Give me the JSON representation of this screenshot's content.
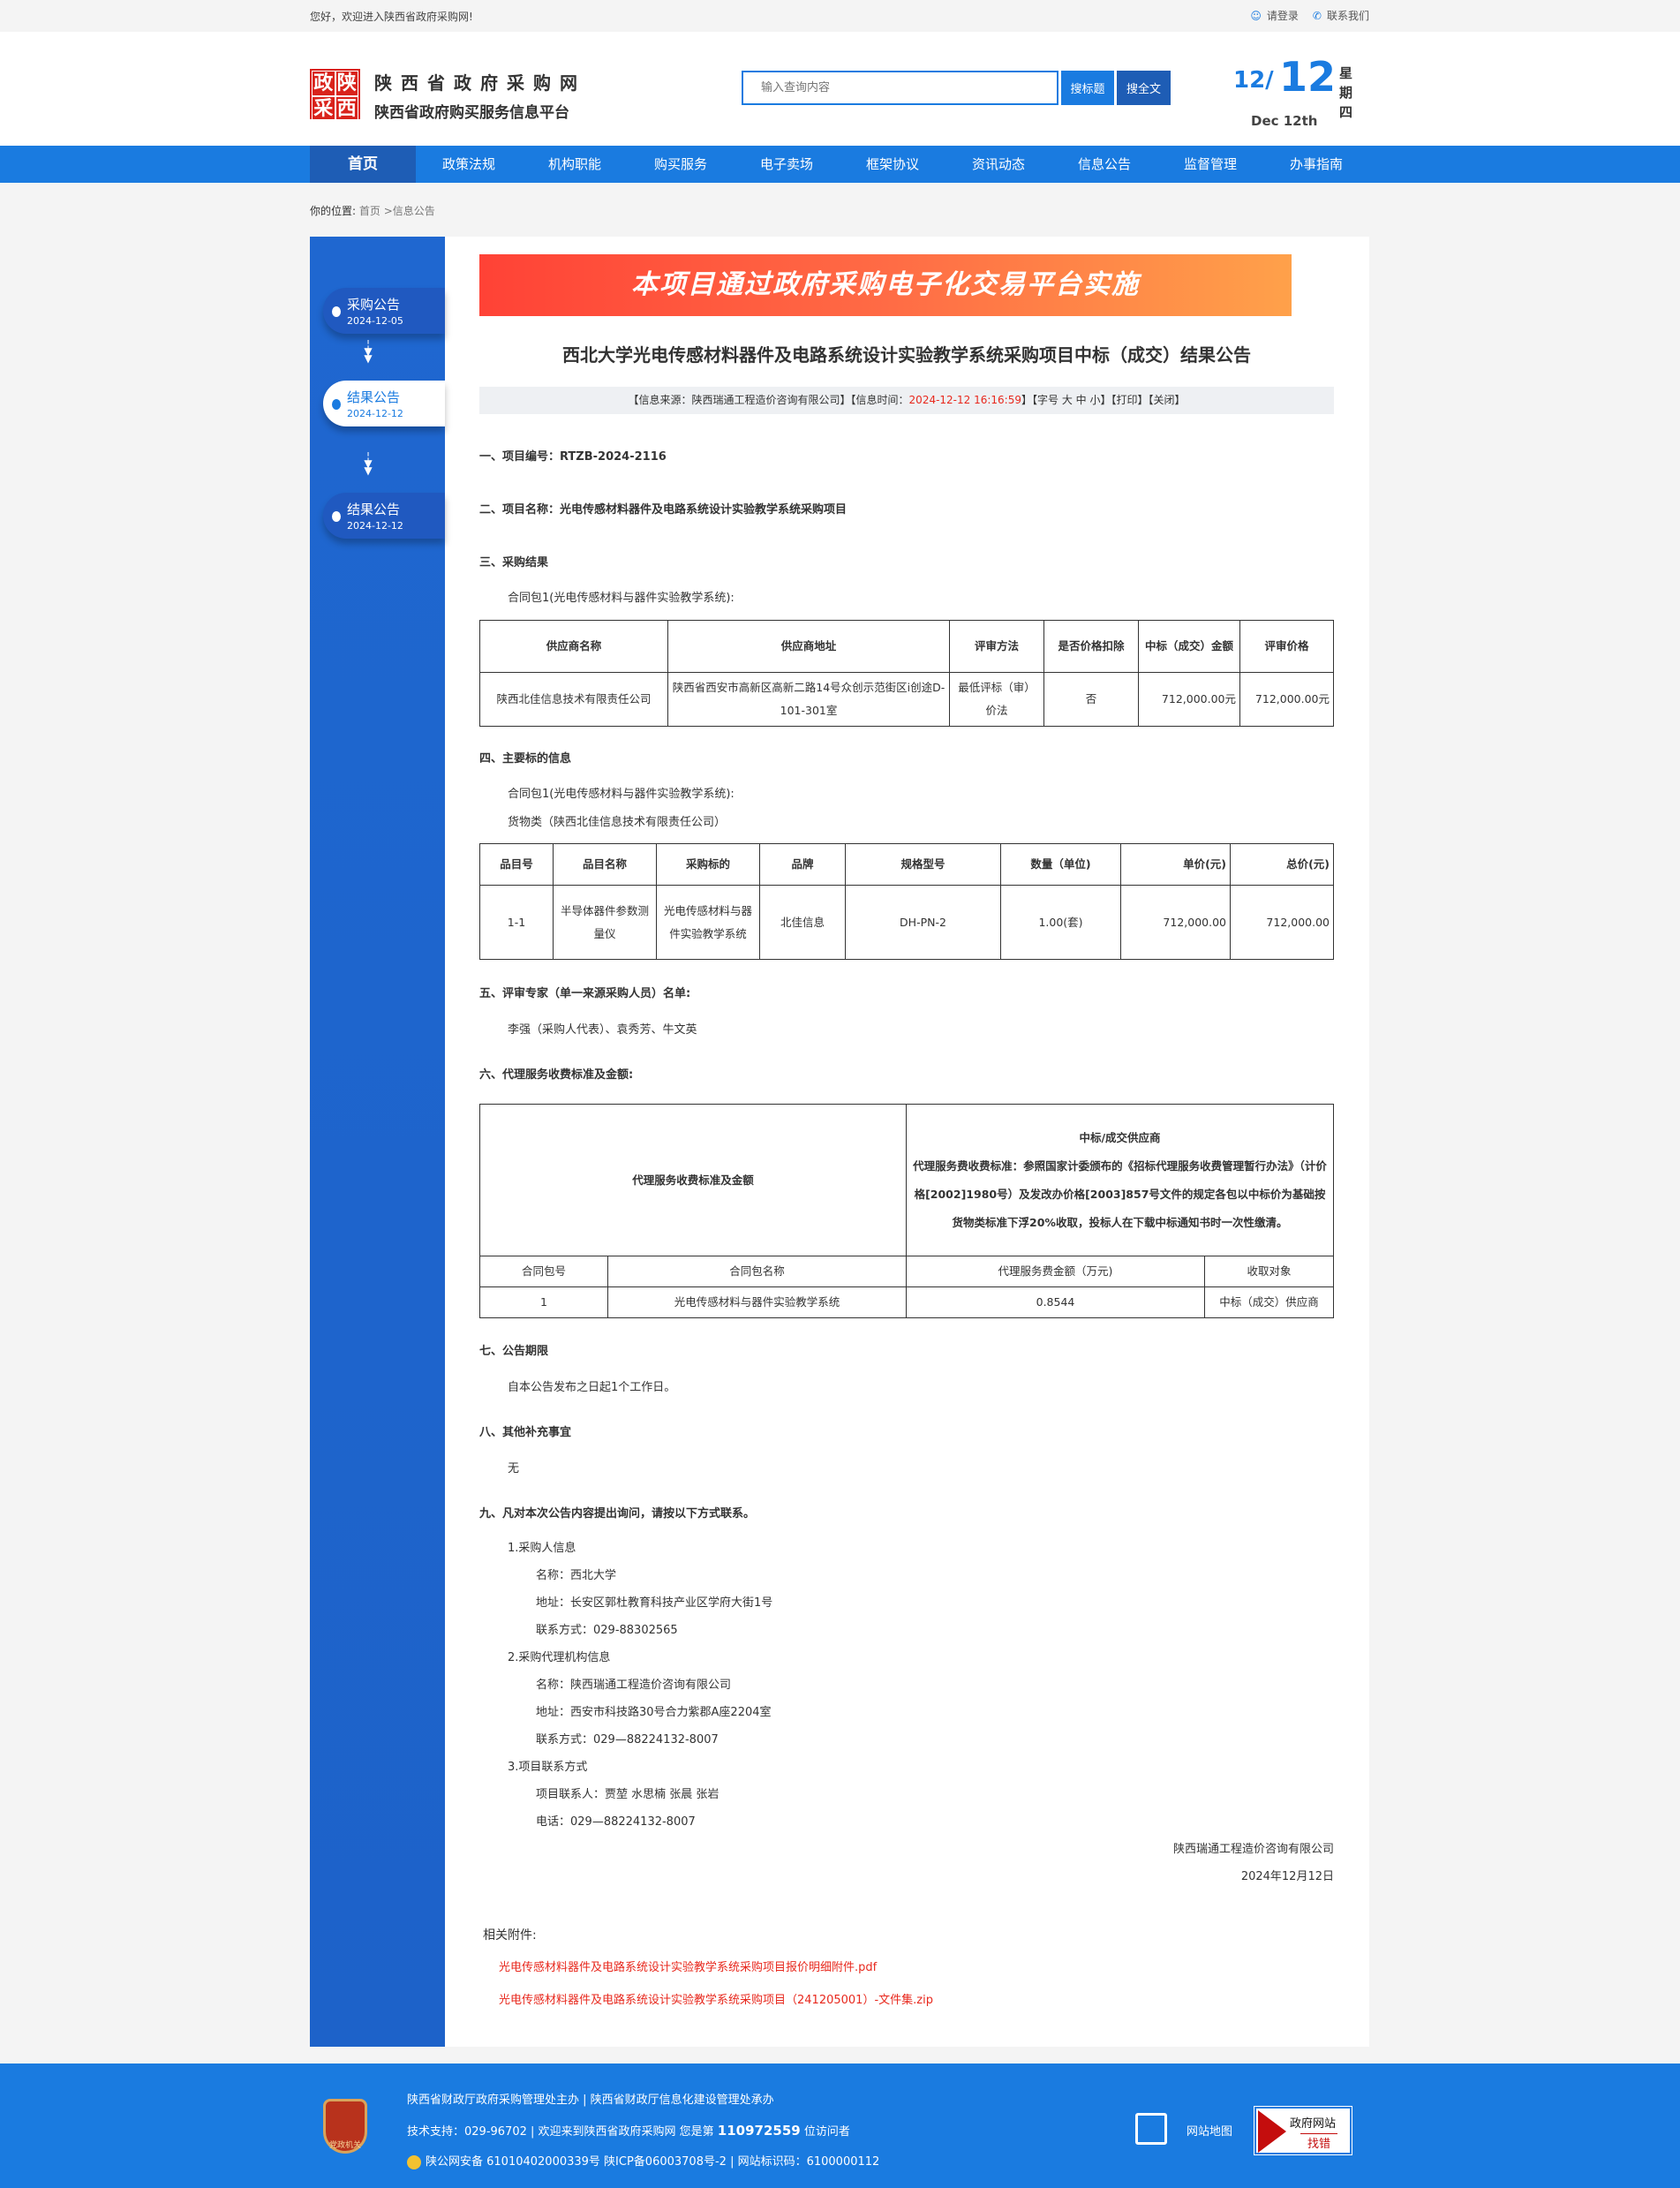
{
  "topbar": {
    "welcome": "您好，欢迎进入陕西省政府采购网!",
    "login": "请登录",
    "contact": "联系我们"
  },
  "header": {
    "logo_chars": [
      "政",
      "陕",
      "采",
      "西"
    ],
    "site_name": "陕西省政府采购网",
    "site_subtitle": "陕西省政府购买服务信息平台",
    "search_placeholder": "输入查询内容",
    "search_title_btn": "搜标题",
    "search_full_btn": "搜全文",
    "date_month": "12/",
    "date_day": "12",
    "date_en": "Dec 12th",
    "weekday": "星期四"
  },
  "nav": {
    "items": [
      "首页",
      "政策法规",
      "机构职能",
      "购买服务",
      "电子卖场",
      "框架协议",
      "资讯动态",
      "信息公告",
      "监督管理",
      "办事指南"
    ],
    "active": "首页"
  },
  "breadcrumb": {
    "label": "你的位置:",
    "home": "首页",
    "current": ">信息公告"
  },
  "sidebar": {
    "nodes": [
      {
        "title": "采购公告",
        "date": "2024-12-05"
      },
      {
        "title": "结果公告",
        "date": "2024-12-12",
        "active": true
      },
      {
        "title": "结果公告",
        "date": "2024-12-12"
      }
    ]
  },
  "article": {
    "banner": "本项目通过政府采购电子化交易平台实施",
    "title": "西北大学光电传感材料器件及电路系统设计实验教学系统采购项目中标（成交）结果公告",
    "info": {
      "source_prefix": "【信息来源：陕西瑞通工程造价咨询有限公司】【信息时间：",
      "time": "2024-12-12 16:16:59",
      "suffix": "】【字号 大 中 小】【打印】【关闭】"
    },
    "s1": "一、项目编号：RTZB-2024-2116",
    "s2": "二、项目名称：光电传感材料器件及电路系统设计实验教学系统采购项目",
    "s3": "三、采购结果",
    "pkg": "合同包1(光电传感材料与器件实验教学系统):",
    "t1": {
      "headers": [
        "供应商名称",
        "供应商地址",
        "评审方法",
        "是否价格扣除",
        "中标（成交）金额",
        "评审价格"
      ],
      "row": [
        "陕西北佳信息技术有限责任公司",
        "陕西省西安市高新区高新二路14号众创示范街区i创途D-101-301室",
        "最低评标（审）价法",
        "否",
        "712,000.00元",
        "712,000.00元"
      ]
    },
    "s4": "四、主要标的信息",
    "goods": "货物类（陕西北佳信息技术有限责任公司）",
    "t2": {
      "headers": [
        "品目号",
        "品目名称",
        "采购标的",
        "品牌",
        "规格型号",
        "数量（单位)",
        "单价(元)",
        "总价(元)"
      ],
      "row": [
        "1-1",
        "半导体器件参数测量仪",
        "光电传感材料与器件实验教学系统",
        "北佳信息",
        "DH-PN-2",
        "1.00(套)",
        "712,000.00",
        "712,000.00"
      ]
    },
    "s5": "五、评审专家（单一来源采购人员）名单:",
    "experts": "李强（采购人代表）、袁秀芳、牛文英",
    "s6": "六、代理服务收费标准及金额:",
    "t3": {
      "left": "代理服务收费标准及金额",
      "right_title": "中标/成交供应商",
      "right_text": "代理服务费收费标准：参照国家计委颁布的《招标代理服务收费管理暂行办法》（计价格[2002]1980号）及发改办价格[2003]857号文件的规定各包以中标价为基础按货物类标准下浮20%收取，投标人在下载中标通知书时一次性缴清。",
      "headers": [
        "合同包号",
        "合同包名称",
        "代理服务费金额（万元)",
        "收取对象"
      ],
      "row": [
        "1",
        "光电传感材料与器件实验教学系统",
        "0.8544",
        "中标（成交）供应商"
      ]
    },
    "s7": "七、公告期限",
    "period": "自本公告发布之日起1个工作日。",
    "s8": "八、其他补充事宜",
    "other": "无",
    "s9": "九、凡对本次公告内容提出询问，请按以下方式联系。",
    "c1": "1.采购人信息",
    "c1_name": "名称：西北大学",
    "c1_addr": "地址：长安区郭杜教育科技产业区学府大街1号",
    "c1_tel": "联系方式：029-88302565",
    "c2": "2.采购代理机构信息",
    "c2_name": "名称：陕西瑞通工程造价咨询有限公司",
    "c2_addr": "地址：西安市科技路30号合力紫郡A座2204室",
    "c2_tel": "联系方式：029—88224132-8007",
    "c3": "3.项目联系方式",
    "c3_people": "项目联系人：贾堃 水思楠 张晨 张岩",
    "c3_tel": "电话：029—88224132-8007",
    "sign_org": "陕西瑞通工程造价咨询有限公司",
    "sign_date": "2024年12月12日",
    "attach_label": "相关附件:",
    "attachments": [
      "光电传感材料器件及电路系统设计实验教学系统采购项目报价明细附件.pdf",
      "光电传感材料器件及电路系统设计实验教学系统采购项目（241205001）-文件集.zip"
    ]
  },
  "footer": {
    "line1": "陕西省财政厅政府采购管理处主办 | 陕西省财政厅信息化建设管理处承办",
    "line2_prefix": "技术支持：029-96702 | 欢迎来到陕西省政府采购网 您是第 ",
    "visitors": "110972559",
    "line2_suffix": " 位访问者",
    "line3": "陕公网安备 61010402000339号   陕ICP备06003708号-2  |  网站标识码：6100000112",
    "badge_text": "党政机关",
    "sitemap": "网站地图",
    "find_error_1": "政府网站",
    "find_error_2": "找错"
  },
  "colors": {
    "brand_blue": "#1a7be0",
    "nav_active": "#1e5db5",
    "red": "#e8281d"
  }
}
